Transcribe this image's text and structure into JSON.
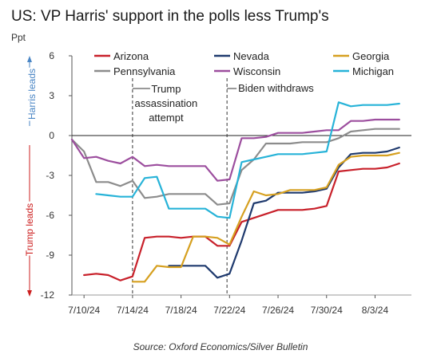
{
  "title": "US: VP Harris' support in the polls less Trump's",
  "unit": "Ppt",
  "source": "Source: Oxford Economics/Silver Bulletin",
  "side_labels": {
    "top": "Harris leads",
    "bottom": "Trump leads",
    "top_color": "#4a86c5",
    "bottom_color": "#cc1f1f"
  },
  "chart_data": {
    "type": "line",
    "title": "US: VP Harris' support in the polls less Trump's",
    "ylabel": "Ppt",
    "ylim": [
      -12,
      6
    ],
    "yticks": [
      6,
      3,
      0,
      -3,
      -6,
      -9,
      -12
    ],
    "xlim": [
      "2024-07-09",
      "2024-08-06"
    ],
    "xticks": [
      {
        "date": "2024-07-10",
        "label": "7/10/24"
      },
      {
        "date": "2024-07-14",
        "label": "7/14/24"
      },
      {
        "date": "2024-07-18",
        "label": "7/18/24"
      },
      {
        "date": "2024-07-22",
        "label": "7/22/24"
      },
      {
        "date": "2024-07-26",
        "label": "7/26/24"
      },
      {
        "date": "2024-07-30",
        "label": "7/30/24"
      },
      {
        "date": "2024-08-03",
        "label": "8/3/24"
      }
    ],
    "grid": false,
    "zero_line": true,
    "legend_position": "top",
    "annotations": [
      {
        "date": "2024-07-14",
        "label": "Trump assassination attempt",
        "lines": [
          "Trump",
          "assassination",
          "attempt"
        ]
      },
      {
        "date": "2024-07-21",
        "label": "Biden withdraws",
        "lines": [
          "Biden withdraws"
        ]
      }
    ],
    "series": [
      {
        "name": "Arizona",
        "color": "#c8202a",
        "x": [
          "2024-07-10",
          "2024-07-11",
          "2024-07-12",
          "2024-07-13",
          "2024-07-14",
          "2024-07-15",
          "2024-07-16",
          "2024-07-17",
          "2024-07-18",
          "2024-07-19",
          "2024-07-20",
          "2024-07-21",
          "2024-07-22",
          "2024-07-23",
          "2024-07-24",
          "2024-07-25",
          "2024-07-26",
          "2024-07-27",
          "2024-07-28",
          "2024-07-29",
          "2024-07-30",
          "2024-07-31",
          "2024-08-01",
          "2024-08-02",
          "2024-08-03",
          "2024-08-04",
          "2024-08-05"
        ],
        "y": [
          -10.5,
          -10.4,
          -10.5,
          -10.9,
          -10.6,
          -7.7,
          -7.6,
          -7.6,
          -7.7,
          -7.6,
          -7.6,
          -8.3,
          -8.3,
          -6.5,
          -6.2,
          -5.9,
          -5.6,
          -5.6,
          -5.6,
          -5.5,
          -5.3,
          -2.7,
          -2.6,
          -2.5,
          -2.5,
          -2.4,
          -2.1
        ]
      },
      {
        "name": "Nevada",
        "color": "#1f3a6e",
        "x": [
          "2024-07-17",
          "2024-07-18",
          "2024-07-19",
          "2024-07-20",
          "2024-07-21",
          "2024-07-22",
          "2024-07-23",
          "2024-07-24",
          "2024-07-25",
          "2024-07-26",
          "2024-07-27",
          "2024-07-28",
          "2024-07-29",
          "2024-07-30",
          "2024-07-31",
          "2024-08-01",
          "2024-08-02",
          "2024-08-03",
          "2024-08-04",
          "2024-08-05"
        ],
        "y": [
          -9.8,
          -9.8,
          -9.8,
          -9.8,
          -10.7,
          -10.4,
          -7.9,
          -5.1,
          -4.9,
          -4.3,
          -4.3,
          -4.3,
          -4.2,
          -4.0,
          -2.4,
          -1.4,
          -1.3,
          -1.3,
          -1.2,
          -0.9
        ]
      },
      {
        "name": "Georgia",
        "color": "#d6a020",
        "x": [
          "2024-07-14",
          "2024-07-15",
          "2024-07-16",
          "2024-07-17",
          "2024-07-18",
          "2024-07-19",
          "2024-07-20",
          "2024-07-21",
          "2024-07-22",
          "2024-07-23",
          "2024-07-24",
          "2024-07-25",
          "2024-07-26",
          "2024-07-27",
          "2024-07-28",
          "2024-07-29",
          "2024-07-30",
          "2024-07-31",
          "2024-08-01",
          "2024-08-02",
          "2024-08-03",
          "2024-08-04",
          "2024-08-05"
        ],
        "y": [
          -11.0,
          -11.0,
          -9.8,
          -9.9,
          -9.9,
          -7.6,
          -7.6,
          -7.7,
          -8.2,
          -6.1,
          -4.2,
          -4.5,
          -4.4,
          -4.1,
          -4.1,
          -4.1,
          -3.9,
          -2.2,
          -1.6,
          -1.5,
          -1.5,
          -1.5,
          -1.3
        ]
      },
      {
        "name": "Pennsylvania",
        "color": "#8c8c8c",
        "x": [
          "2024-07-09",
          "2024-07-10",
          "2024-07-11",
          "2024-07-12",
          "2024-07-13",
          "2024-07-14",
          "2024-07-15",
          "2024-07-16",
          "2024-07-17",
          "2024-07-18",
          "2024-07-19",
          "2024-07-20",
          "2024-07-21",
          "2024-07-22",
          "2024-07-23",
          "2024-07-24",
          "2024-07-25",
          "2024-07-26",
          "2024-07-27",
          "2024-07-28",
          "2024-07-29",
          "2024-07-30",
          "2024-07-31",
          "2024-08-01",
          "2024-08-02",
          "2024-08-03",
          "2024-08-04",
          "2024-08-05"
        ],
        "y": [
          -0.3,
          -1.2,
          -3.5,
          -3.5,
          -3.8,
          -3.4,
          -4.7,
          -4.6,
          -4.4,
          -4.4,
          -4.4,
          -4.4,
          -5.2,
          -5.1,
          -2.6,
          -1.8,
          -0.6,
          -0.6,
          -0.6,
          -0.5,
          -0.5,
          -0.5,
          -0.2,
          0.3,
          0.4,
          0.5,
          0.5,
          0.5
        ]
      },
      {
        "name": "Wisconsin",
        "color": "#9c4e9e",
        "x": [
          "2024-07-09",
          "2024-07-10",
          "2024-07-11",
          "2024-07-12",
          "2024-07-13",
          "2024-07-14",
          "2024-07-15",
          "2024-07-16",
          "2024-07-17",
          "2024-07-18",
          "2024-07-19",
          "2024-07-20",
          "2024-07-21",
          "2024-07-22",
          "2024-07-23",
          "2024-07-24",
          "2024-07-25",
          "2024-07-26",
          "2024-07-27",
          "2024-07-28",
          "2024-07-29",
          "2024-07-30",
          "2024-07-31",
          "2024-08-01",
          "2024-08-02",
          "2024-08-03",
          "2024-08-04",
          "2024-08-05"
        ],
        "y": [
          -0.3,
          -1.7,
          -1.6,
          -1.9,
          -2.1,
          -1.6,
          -2.3,
          -2.2,
          -2.3,
          -2.3,
          -2.3,
          -2.3,
          -3.4,
          -3.3,
          -0.2,
          -0.2,
          -0.1,
          0.2,
          0.2,
          0.2,
          0.3,
          0.4,
          0.4,
          1.1,
          1.1,
          1.2,
          1.2,
          1.2
        ]
      },
      {
        "name": "Michigan",
        "color": "#27b3d8",
        "x": [
          "2024-07-11",
          "2024-07-12",
          "2024-07-13",
          "2024-07-14",
          "2024-07-15",
          "2024-07-16",
          "2024-07-17",
          "2024-07-18",
          "2024-07-19",
          "2024-07-20",
          "2024-07-21",
          "2024-07-22",
          "2024-07-23",
          "2024-07-24",
          "2024-07-25",
          "2024-07-26",
          "2024-07-27",
          "2024-07-28",
          "2024-07-29",
          "2024-07-30",
          "2024-07-31",
          "2024-08-01",
          "2024-08-02",
          "2024-08-03",
          "2024-08-04",
          "2024-08-05"
        ],
        "y": [
          -4.4,
          -4.5,
          -4.6,
          -4.6,
          -3.2,
          -3.1,
          -5.5,
          -5.5,
          -5.5,
          -5.5,
          -6.1,
          -6.2,
          -2.0,
          -1.8,
          -1.6,
          -1.4,
          -1.4,
          -1.4,
          -1.3,
          -1.2,
          2.5,
          2.2,
          2.3,
          2.3,
          2.3,
          2.4
        ]
      }
    ]
  }
}
